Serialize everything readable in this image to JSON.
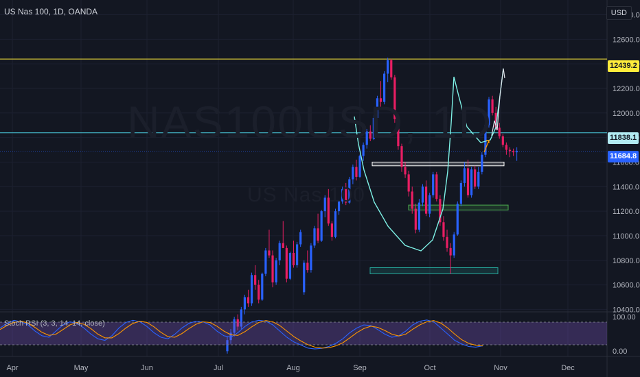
{
  "header": {
    "symbol_title": "US Nas 100, 1D, OANDA",
    "currency": "USD"
  },
  "watermark": {
    "ticker": "NAS100USD, 1D",
    "name": "US Nas 100"
  },
  "indicator": {
    "label": "Stoch RSI (3, 3, 14, 14, close)"
  },
  "price_tags": {
    "resistance": "12439.2",
    "level": "11838.1",
    "current": "11684.8"
  },
  "colors": {
    "background": "#131722",
    "bull": "#2962ff",
    "bear": "#e91e63",
    "resistance": "#ffeb3b",
    "level": "#4dd0e1",
    "drawing": "#7ef1e6"
  },
  "chart_data": [
    {
      "type": "candlestick",
      "title": "US Nas 100, 1D, OANDA",
      "y_axis": {
        "unit": "USD",
        "range": [
          10380,
          12920
        ],
        "tick_labels": [
          "12800.0",
          "12600.0",
          "12400.0",
          "12200.0",
          "12000.0",
          "11800.0",
          "11600.0",
          "11400.0",
          "11200.0",
          "11000.0",
          "10800.0",
          "10600.0",
          "10400.0"
        ]
      },
      "x_axis": {
        "tick_labels": [
          "Apr",
          "May",
          "Jun",
          "Jul",
          "Aug",
          "Sep",
          "Oct",
          "Nov",
          "Dec"
        ]
      },
      "horizontal_levels": [
        12439.2,
        11838.1,
        11684.8
      ],
      "zones": [
        [
          11570,
          11600
        ],
        [
          11210,
          11250
        ],
        [
          10690,
          10740
        ]
      ],
      "candles_ohlc": [
        [
          10060,
          10180,
          10040,
          10150
        ],
        [
          10150,
          10240,
          10120,
          10210
        ],
        [
          10210,
          10340,
          10180,
          10320
        ],
        [
          10320,
          10360,
          10230,
          10260
        ],
        [
          10260,
          10420,
          10240,
          10400
        ],
        [
          10400,
          10520,
          10360,
          10500
        ],
        [
          10500,
          10560,
          10420,
          10450
        ],
        [
          10450,
          10700,
          10430,
          10680
        ],
        [
          10680,
          10760,
          10560,
          10600
        ],
        [
          10600,
          10640,
          10450,
          10480
        ],
        [
          10480,
          10700,
          10470,
          10690
        ],
        [
          10690,
          10900,
          10670,
          10880
        ],
        [
          10880,
          11050,
          10820,
          10840
        ],
        [
          10840,
          10880,
          10580,
          10620
        ],
        [
          10620,
          10820,
          10600,
          10800
        ],
        [
          10800,
          10960,
          10760,
          10940
        ],
        [
          10940,
          11120,
          10900,
          10900
        ],
        [
          10900,
          10920,
          10620,
          10650
        ],
        [
          10650,
          10870,
          10640,
          10860
        ],
        [
          10860,
          10960,
          10740,
          10760
        ],
        [
          10760,
          10950,
          10740,
          10930
        ],
        [
          10930,
          11050,
          10910,
          11030
        ],
        [
          10540,
          10800,
          10520,
          10780
        ],
        [
          10780,
          10880,
          10700,
          10720
        ],
        [
          10720,
          10940,
          10700,
          10920
        ],
        [
          10920,
          11080,
          10900,
          11060
        ],
        [
          11060,
          11180,
          10940,
          10960
        ],
        [
          10960,
          11210,
          10950,
          11200
        ],
        [
          11200,
          11330,
          11150,
          11310
        ],
        [
          11310,
          11380,
          11080,
          11100
        ],
        [
          11100,
          11120,
          10960,
          10990
        ],
        [
          10990,
          11220,
          10980,
          11200
        ],
        [
          11200,
          11290,
          11170,
          11280
        ],
        [
          11280,
          11400,
          11260,
          11380
        ],
        [
          11380,
          11430,
          11250,
          11270
        ],
        [
          11270,
          11480,
          11260,
          11460
        ],
        [
          11460,
          11580,
          11420,
          11560
        ],
        [
          11560,
          11620,
          11450,
          11480
        ],
        [
          11480,
          11660,
          11470,
          11650
        ],
        [
          11650,
          11760,
          11610,
          11740
        ],
        [
          11740,
          11870,
          11710,
          11850
        ],
        [
          11850,
          11900,
          11770,
          11790
        ],
        [
          11790,
          11980,
          11780,
          11960
        ],
        [
          11960,
          12140,
          11930,
          12120
        ],
        [
          12120,
          12260,
          12050,
          12090
        ],
        [
          12090,
          12340,
          12070,
          12320
        ],
        [
          12320,
          12450,
          12250,
          12430
        ],
        [
          12430,
          12440,
          12270,
          12290
        ],
        [
          12290,
          12310,
          11920,
          11950
        ],
        [
          11950,
          11980,
          11700,
          11730
        ],
        [
          11730,
          11750,
          11520,
          11560
        ],
        [
          11560,
          11600,
          11470,
          11500
        ],
        [
          11500,
          11530,
          11320,
          11360
        ],
        [
          11360,
          11400,
          11180,
          11220
        ],
        [
          11220,
          11260,
          11020,
          11050
        ],
        [
          11050,
          11300,
          11030,
          11270
        ],
        [
          11270,
          11420,
          11240,
          11400
        ],
        [
          11400,
          11450,
          11160,
          11180
        ],
        [
          11180,
          11350,
          11150,
          11330
        ],
        [
          11330,
          11520,
          11310,
          11500
        ],
        [
          11500,
          11520,
          11280,
          11300
        ],
        [
          11300,
          11330,
          11080,
          11110
        ],
        [
          11110,
          11160,
          10960,
          10990
        ],
        [
          10990,
          11050,
          10870,
          10900
        ],
        [
          10900,
          10940,
          10690,
          10840
        ],
        [
          10840,
          11030,
          10820,
          11010
        ],
        [
          11010,
          11280,
          11000,
          11260
        ],
        [
          11260,
          11450,
          11240,
          11430
        ],
        [
          11430,
          11600,
          11400,
          11550
        ],
        [
          11550,
          11620,
          11310,
          11330
        ],
        [
          11330,
          11560,
          11310,
          11540
        ],
        [
          11540,
          11570,
          11380,
          11400
        ],
        [
          11400,
          11560,
          11380,
          11520
        ],
        [
          11520,
          11680,
          11500,
          11660
        ],
        [
          11660,
          11920,
          11640,
          11900
        ],
        [
          11900,
          12130,
          11880,
          12110
        ],
        [
          12110,
          12140,
          11980,
          12000
        ],
        [
          12000,
          12050,
          11860,
          11880
        ],
        [
          11880,
          11920,
          11790,
          11810
        ],
        [
          11810,
          11830,
          11720,
          11740
        ],
        [
          11740,
          11760,
          11660,
          11700
        ],
        [
          11700,
          11720,
          11640,
          11690
        ],
        [
          11690,
          11710,
          11650,
          11680
        ],
        [
          11680,
          11720,
          11610,
          11690
        ]
      ]
    },
    {
      "type": "line",
      "title": "Stoch RSI (3, 3, 14, 14, close)",
      "y_axis": {
        "range": [
          0,
          100
        ],
        "tick_labels": [
          "100.00",
          "0.00"
        ]
      },
      "series": [
        {
          "name": "K",
          "color": "#2962ff",
          "values": [
            70,
            85,
            95,
            90,
            80,
            60,
            45,
            40,
            60,
            80,
            90,
            85,
            70,
            50,
            35,
            30,
            45,
            70,
            88,
            95,
            90,
            75,
            55,
            40,
            35,
            50,
            70,
            85,
            92,
            90,
            80,
            60,
            45,
            40,
            55,
            75,
            90,
            95,
            92,
            80,
            60,
            40,
            25,
            15,
            5,
            2,
            4,
            10,
            20,
            35,
            55,
            70,
            80,
            78,
            65,
            50,
            40,
            45,
            60,
            80,
            92,
            96,
            90,
            70,
            50,
            30,
            18,
            10,
            8,
            12
          ]
        },
        {
          "name": "D",
          "color": "#ff9800",
          "values": [
            65,
            78,
            88,
            92,
            86,
            72,
            56,
            46,
            50,
            65,
            80,
            88,
            82,
            68,
            50,
            38,
            38,
            52,
            70,
            85,
            92,
            88,
            74,
            56,
            42,
            40,
            52,
            68,
            82,
            90,
            88,
            76,
            60,
            48,
            46,
            58,
            74,
            88,
            94,
            90,
            78,
            60,
            42,
            28,
            16,
            8,
            5,
            6,
            12,
            22,
            38,
            55,
            68,
            76,
            72,
            62,
            50,
            44,
            50,
            66,
            80,
            90,
            94,
            86,
            70,
            50,
            32,
            20,
            14,
            12
          ]
        }
      ]
    }
  ]
}
